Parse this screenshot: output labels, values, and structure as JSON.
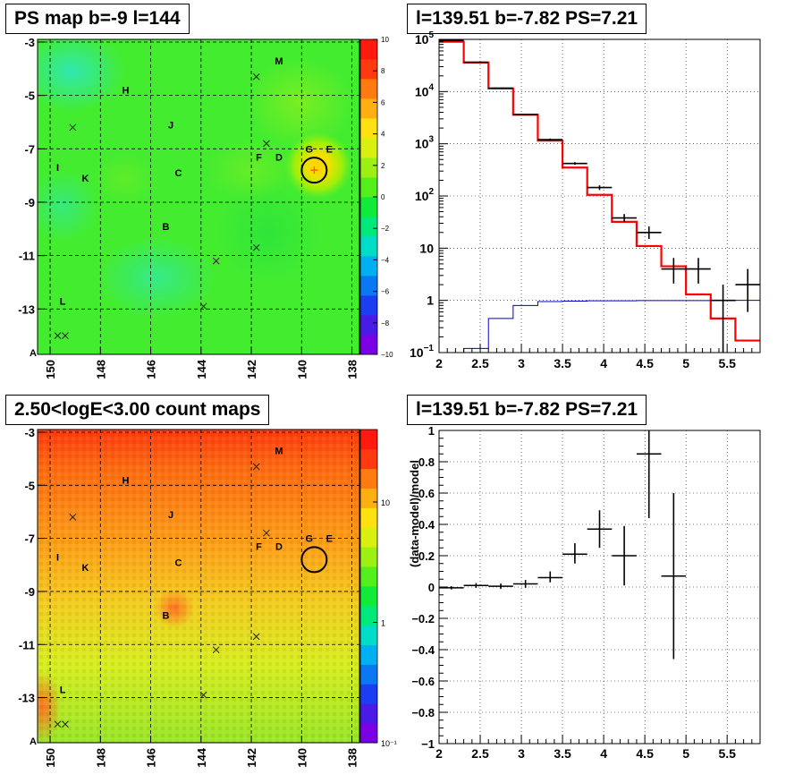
{
  "panels": {
    "ps_map": {
      "title": "PS map b=-9 l=144",
      "chart_data": {
        "type": "heatmap",
        "xlabel": "",
        "ylabel": "",
        "xlim": [
          150.5,
          137.7
        ],
        "ylim": [
          -14.7,
          -2.9
        ],
        "x_ticks": [
          "150",
          "148",
          "146",
          "144",
          "142",
          "140",
          "138"
        ],
        "y_ticks": [
          "-3",
          "-5",
          "-7",
          "-9",
          "-11",
          "-13"
        ],
        "corner_label": "A",
        "colorbar": {
          "min": -10,
          "max": 10,
          "ticks": [
            "10",
            "8",
            "6",
            "4",
            "2",
            "0",
            "−2",
            "−4",
            "−6",
            "−8",
            "−10"
          ]
        },
        "background_value": 0,
        "hotspot": {
          "l": 139.5,
          "b": -7.8,
          "value": 7
        },
        "circle": {
          "l": 139.5,
          "b": -7.8
        },
        "crosses": [
          {
            "l": 149.1,
            "b": -6.2
          },
          {
            "l": 141.8,
            "b": -4.3
          },
          {
            "l": 141.4,
            "b": -6.8
          },
          {
            "l": 141.8,
            "b": -10.7
          },
          {
            "l": 143.4,
            "b": -11.2
          },
          {
            "l": 143.9,
            "b": -12.9
          },
          {
            "l": 149.4,
            "b": -14.0
          },
          {
            "l": 149.7,
            "b": -14.0
          }
        ],
        "source_labels": [
          {
            "text": "M",
            "l": 140.9,
            "b": -3.7
          },
          {
            "text": "H",
            "l": 147.0,
            "b": -4.8
          },
          {
            "text": "J",
            "l": 145.2,
            "b": -6.1
          },
          {
            "text": "G",
            "l": 139.7,
            "b": -7.0
          },
          {
            "text": "E",
            "l": 138.9,
            "b": -7.0
          },
          {
            "text": "F",
            "l": 141.7,
            "b": -7.3
          },
          {
            "text": "D",
            "l": 140.9,
            "b": -7.3
          },
          {
            "text": "I",
            "l": 149.7,
            "b": -7.7
          },
          {
            "text": "K",
            "l": 148.6,
            "b": -8.1
          },
          {
            "text": "C",
            "l": 144.9,
            "b": -7.9
          },
          {
            "text": "B",
            "l": 145.4,
            "b": -9.9
          },
          {
            "text": "L",
            "l": 149.5,
            "b": -12.7
          }
        ]
      }
    },
    "count_map": {
      "title": "2.50<logE<3.00 count maps",
      "chart_data": {
        "type": "heatmap",
        "xlabel": "",
        "ylabel": "",
        "xlim": [
          150.5,
          137.7
        ],
        "ylim": [
          -14.7,
          -2.9
        ],
        "x_ticks": [
          "150",
          "148",
          "146",
          "144",
          "142",
          "140",
          "138"
        ],
        "y_ticks": [
          "-3",
          "-5",
          "-7",
          "-9",
          "-11",
          "-13"
        ],
        "corner_label": "A",
        "colorbar": {
          "scale": "log",
          "min": 0.1,
          "max": 40,
          "ticks": [
            {
              "label": "10",
              "value": 10
            },
            {
              "label": "1",
              "value": 1
            },
            {
              "label": "10⁻¹",
              "value": 0.1
            }
          ]
        },
        "gradient": {
          "top_counts": 25,
          "bottom_counts": 4
        },
        "circle": {
          "l": 139.5,
          "b": -7.8
        },
        "crosses": [
          {
            "l": 149.1,
            "b": -6.2
          },
          {
            "l": 141.8,
            "b": -4.3
          },
          {
            "l": 141.4,
            "b": -6.8
          },
          {
            "l": 141.8,
            "b": -10.7
          },
          {
            "l": 143.4,
            "b": -11.2
          },
          {
            "l": 143.9,
            "b": -12.9
          },
          {
            "l": 149.4,
            "b": -14.0
          },
          {
            "l": 149.7,
            "b": -14.0
          }
        ],
        "source_labels": [
          {
            "text": "M",
            "l": 140.9,
            "b": -3.7
          },
          {
            "text": "H",
            "l": 147.0,
            "b": -4.8
          },
          {
            "text": "J",
            "l": 145.2,
            "b": -6.1
          },
          {
            "text": "G",
            "l": 139.7,
            "b": -7.0
          },
          {
            "text": "E",
            "l": 138.9,
            "b": -7.0
          },
          {
            "text": "F",
            "l": 141.7,
            "b": -7.3
          },
          {
            "text": "D",
            "l": 140.9,
            "b": -7.3
          },
          {
            "text": "I",
            "l": 149.7,
            "b": -7.7
          },
          {
            "text": "K",
            "l": 148.6,
            "b": -8.1
          },
          {
            "text": "C",
            "l": 144.9,
            "b": -7.9
          },
          {
            "text": "B",
            "l": 145.4,
            "b": -9.9
          },
          {
            "text": "L",
            "l": 149.5,
            "b": -12.7
          }
        ]
      }
    },
    "spectrum": {
      "title": "l=139.51 b=-7.82 PS=7.21",
      "chart_data": {
        "type": "line",
        "xlabel": "",
        "ylabel": "",
        "yscale": "log",
        "xlim": [
          2.0,
          5.9
        ],
        "ylim": [
          0.1,
          100000
        ],
        "grid": true,
        "x_ticks": [
          "2",
          "2.5",
          "3",
          "3.5",
          "4",
          "4.5",
          "5",
          "5.5"
        ],
        "y_ticks": [
          {
            "base": "10",
            "exp": "5",
            "value": 100000
          },
          {
            "base": "10",
            "exp": "4",
            "value": 10000
          },
          {
            "base": "10",
            "exp": "3",
            "value": 1000
          },
          {
            "base": "10",
            "exp": "2",
            "value": 100
          },
          {
            "base": "10",
            "exp": "",
            "value": 10
          },
          {
            "base": "1",
            "exp": "",
            "value": 1
          },
          {
            "base": "10",
            "exp": "−1",
            "value": 0.1
          }
        ],
        "bin_edges": [
          2.0,
          2.3,
          2.6,
          2.9,
          3.2,
          3.5,
          3.8,
          4.1,
          4.4,
          4.7,
          5.0,
          5.3,
          5.6,
          5.9
        ],
        "series": [
          {
            "color": "#ff0000",
            "style": "histogram",
            "values": [
              90000,
              36000,
              11500,
              3600,
              1150,
              350,
              105,
              32,
              11,
              4.5,
              1.3,
              0.45,
              0.17
            ]
          },
          {
            "color": "#0000cc",
            "style": "histogram",
            "values": [
              0.1,
              0.12,
              0.45,
              0.8,
              0.95,
              0.97,
              0.98,
              0.98,
              0.99,
              0.99,
              0.99,
              0.99,
              1.0
            ]
          },
          {
            "color": "#000000",
            "style": "errorbar",
            "points": [
              {
                "x": 2.15,
                "y": 95000,
                "lo": 94000,
                "hi": 96000
              },
              {
                "x": 2.45,
                "y": 36500,
                "lo": 36000,
                "hi": 37000
              },
              {
                "x": 2.75,
                "y": 11600,
                "lo": 11400,
                "hi": 11800
              },
              {
                "x": 3.05,
                "y": 3650,
                "lo": 3550,
                "hi": 3750
              },
              {
                "x": 3.35,
                "y": 1200,
                "lo": 1140,
                "hi": 1260
              },
              {
                "x": 3.65,
                "y": 420,
                "lo": 395,
                "hi": 445
              },
              {
                "x": 3.95,
                "y": 145,
                "lo": 130,
                "hi": 160
              },
              {
                "x": 4.25,
                "y": 38,
                "lo": 32,
                "hi": 45
              },
              {
                "x": 4.55,
                "y": 20,
                "lo": 15,
                "hi": 26
              },
              {
                "x": 4.85,
                "y": 4,
                "lo": 2.1,
                "hi": 6.5
              },
              {
                "x": 5.15,
                "y": 4,
                "lo": 2.1,
                "hi": 6.5
              },
              {
                "x": 5.45,
                "y": 1,
                "lo": 0.1,
                "hi": 2.0
              },
              {
                "x": 5.75,
                "y": 2,
                "lo": 0.6,
                "hi": 4.0
              }
            ]
          }
        ]
      }
    },
    "residual": {
      "title": "l=139.51 b=-7.82 PS=7.21",
      "chart_data": {
        "type": "scatter",
        "xlabel": "",
        "ylabel": "(data-model)/model",
        "xlim": [
          2.0,
          5.9
        ],
        "ylim": [
          -1,
          1
        ],
        "grid": true,
        "x_ticks": [
          "2",
          "2.5",
          "3",
          "3.5",
          "4",
          "4.5",
          "5",
          "5.5"
        ],
        "y_ticks": [
          "1",
          "0.8",
          "0.6",
          "0.4",
          "0.2",
          "0",
          "−0.2",
          "−0.4",
          "−0.6",
          "−0.8",
          "−1"
        ],
        "series": [
          {
            "color": "#000000",
            "style": "errorbar",
            "points": [
              {
                "x": 2.15,
                "y": -0.005,
                "lo": -0.015,
                "hi": 0.005
              },
              {
                "x": 2.45,
                "y": 0.01,
                "lo": -0.005,
                "hi": 0.025
              },
              {
                "x": 2.75,
                "y": 0.005,
                "lo": -0.012,
                "hi": 0.022
              },
              {
                "x": 3.05,
                "y": 0.02,
                "lo": -0.005,
                "hi": 0.045
              },
              {
                "x": 3.35,
                "y": 0.06,
                "lo": 0.03,
                "hi": 0.1
              },
              {
                "x": 3.65,
                "y": 0.21,
                "lo": 0.15,
                "hi": 0.28
              },
              {
                "x": 3.95,
                "y": 0.37,
                "lo": 0.25,
                "hi": 0.49
              },
              {
                "x": 4.25,
                "y": 0.2,
                "lo": 0.01,
                "hi": 0.39
              },
              {
                "x": 4.55,
                "y": 0.85,
                "lo": 0.44,
                "hi": 1.0
              },
              {
                "x": 4.85,
                "y": 0.07,
                "lo": -0.46,
                "hi": 0.6
              }
            ]
          }
        ]
      }
    }
  }
}
